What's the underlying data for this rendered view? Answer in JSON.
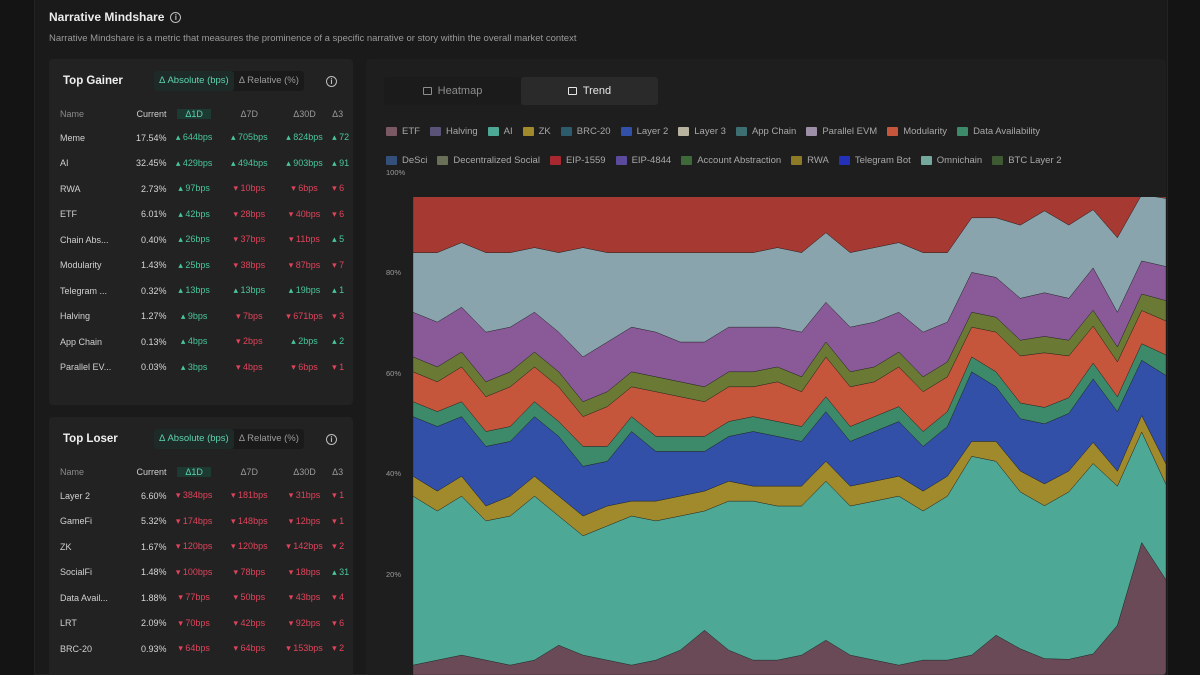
{
  "header": {
    "title": "Narrative Mindshare",
    "description": "Narrative Mindshare is a metric that measures the prominence of a specific narrative or story within the overall market context"
  },
  "modes": {
    "absolute": "Δ Absolute (bps)",
    "relative": "Δ Relative (%)"
  },
  "columns": {
    "name": "Name",
    "current": "Current",
    "d1": "Δ1D",
    "d7": "Δ7D",
    "d30": "Δ30D",
    "d3m": "Δ3"
  },
  "gainer": {
    "title": "Top Gainer",
    "rows": [
      {
        "name": "Meme",
        "current": "17.54%",
        "d1": "644bps",
        "d7": "705bps",
        "d30": "824bps",
        "d3m": "72",
        "t7": "up",
        "t30": "up",
        "t3": "up"
      },
      {
        "name": "AI",
        "current": "32.45%",
        "d1": "429bps",
        "d7": "494bps",
        "d30": "903bps",
        "d3m": "91",
        "t7": "up",
        "t30": "up",
        "t3": "up"
      },
      {
        "name": "RWA",
        "current": "2.73%",
        "d1": "97bps",
        "d7": "10bps",
        "d30": "6bps",
        "d3m": "6",
        "t7": "down",
        "t30": "down",
        "t3": "down"
      },
      {
        "name": "ETF",
        "current": "6.01%",
        "d1": "42bps",
        "d7": "28bps",
        "d30": "40bps",
        "d3m": "6",
        "t7": "down",
        "t30": "down",
        "t3": "down"
      },
      {
        "name": "Chain Abs...",
        "current": "0.40%",
        "d1": "26bps",
        "d7": "37bps",
        "d30": "11bps",
        "d3m": "5",
        "t7": "down",
        "t30": "down",
        "t3": "up"
      },
      {
        "name": "Modularity",
        "current": "1.43%",
        "d1": "25bps",
        "d7": "38bps",
        "d30": "87bps",
        "d3m": "7",
        "t7": "down",
        "t30": "down",
        "t3": "down"
      },
      {
        "name": "Telegram ...",
        "current": "0.32%",
        "d1": "13bps",
        "d7": "13bps",
        "d30": "19bps",
        "d3m": "1",
        "t7": "up",
        "t30": "up",
        "t3": "up"
      },
      {
        "name": "Halving",
        "current": "1.27%",
        "d1": "9bps",
        "d7": "7bps",
        "d30": "671bps",
        "d3m": "3",
        "t7": "down",
        "t30": "down",
        "t3": "down"
      },
      {
        "name": "App Chain",
        "current": "0.13%",
        "d1": "4bps",
        "d7": "2bps",
        "d30": "2bps",
        "d3m": "2",
        "t7": "down",
        "t30": "up",
        "t3": "up"
      },
      {
        "name": "Parallel EV...",
        "current": "0.03%",
        "d1": "3bps",
        "d7": "4bps",
        "d30": "6bps",
        "d3m": "1",
        "t7": "down",
        "t30": "down",
        "t3": "down"
      }
    ]
  },
  "loser": {
    "title": "Top Loser",
    "rows": [
      {
        "name": "Layer 2",
        "current": "6.60%",
        "d1": "384bps",
        "d7": "181bps",
        "d30": "31bps",
        "d3m": "1",
        "t7": "down",
        "t30": "down",
        "t3": "down"
      },
      {
        "name": "GameFi",
        "current": "5.32%",
        "d1": "174bps",
        "d7": "148bps",
        "d30": "12bps",
        "d3m": "1",
        "t7": "down",
        "t30": "down",
        "t3": "down"
      },
      {
        "name": "ZK",
        "current": "1.67%",
        "d1": "120bps",
        "d7": "120bps",
        "d30": "142bps",
        "d3m": "2",
        "t7": "down",
        "t30": "down",
        "t3": "down"
      },
      {
        "name": "SocialFi",
        "current": "1.48%",
        "d1": "100bps",
        "d7": "78bps",
        "d30": "18bps",
        "d3m": "31",
        "t7": "down",
        "t30": "down",
        "t3": "up"
      },
      {
        "name": "Data Avail...",
        "current": "1.88%",
        "d1": "77bps",
        "d7": "50bps",
        "d30": "43bps",
        "d3m": "4",
        "t7": "down",
        "t30": "down",
        "t3": "down"
      },
      {
        "name": "LRT",
        "current": "2.09%",
        "d1": "70bps",
        "d7": "42bps",
        "d30": "92bps",
        "d3m": "6",
        "t7": "down",
        "t30": "down",
        "t3": "down"
      },
      {
        "name": "BRC-20",
        "current": "0.93%",
        "d1": "64bps",
        "d7": "64bps",
        "d30": "153bps",
        "d3m": "2",
        "t7": "down",
        "t30": "down",
        "t3": "down"
      }
    ]
  },
  "chart_tabs": {
    "heatmap": "Heatmap",
    "trend": "Trend"
  },
  "chart_data": {
    "type": "area",
    "stacked": true,
    "percent": true,
    "y_ticks": [
      "20%",
      "40%",
      "60%",
      "80%",
      "100%"
    ],
    "ylim": [
      0,
      100
    ],
    "legend": [
      [
        {
          "name": "ETF",
          "color": "#7a5864"
        },
        {
          "name": "Halving",
          "color": "#5a5277"
        },
        {
          "name": "AI",
          "color": "#4ea896"
        },
        {
          "name": "ZK",
          "color": "#a08a2c"
        },
        {
          "name": "BRC-20",
          "color": "#2c5b6c"
        },
        {
          "name": "Layer 2",
          "color": "#3350a8"
        },
        {
          "name": "Layer 3",
          "color": "#b8b39e"
        },
        {
          "name": "App Chain",
          "color": "#3c6e72"
        },
        {
          "name": "Parallel EVM",
          "color": "#9c8fa7"
        },
        {
          "name": "Modularity",
          "color": "#c5563c"
        },
        {
          "name": "Data Availability",
          "color": "#3c8a6a"
        }
      ],
      [
        {
          "name": "DeSci",
          "color": "#34507a"
        },
        {
          "name": "Decentralized Social",
          "color": "#6a7058"
        },
        {
          "name": "EIP-1559",
          "color": "#a82830"
        },
        {
          "name": "EIP-4844",
          "color": "#5c4a9c"
        },
        {
          "name": "Account Abstraction",
          "color": "#3e6a3a"
        },
        {
          "name": "RWA",
          "color": "#8c7a26"
        },
        {
          "name": "Telegram Bot",
          "color": "#2430b8"
        },
        {
          "name": "Omnichain",
          "color": "#74a89c"
        },
        {
          "name": "BTC Layer 2",
          "color": "#3e5a32"
        }
      ]
    ],
    "layers": [
      {
        "name": "ETF",
        "color": "#6a4a56",
        "values": [
          2,
          3,
          4,
          3,
          2,
          3,
          6,
          4,
          3,
          2,
          3,
          5,
          9,
          5,
          3,
          3,
          4,
          7,
          4,
          3,
          2,
          3,
          3,
          4,
          8,
          5,
          3,
          3,
          4,
          10,
          24,
          14
        ]
      },
      {
        "name": "AI",
        "color": "#4ea896",
        "values": [
          34,
          30,
          32,
          28,
          30,
          33,
          26,
          24,
          27,
          30,
          28,
          27,
          24,
          30,
          32,
          31,
          30,
          32,
          30,
          32,
          34,
          30,
          33,
          40,
          35,
          30,
          28,
          32,
          36,
          28,
          20,
          14
        ]
      },
      {
        "name": "ZK",
        "color": "#a08a2c",
        "values": [
          4,
          4,
          4,
          3,
          4,
          4,
          4,
          4,
          4,
          3,
          4,
          4,
          4,
          4,
          3,
          4,
          4,
          4,
          4,
          4,
          4,
          4,
          4,
          3,
          4,
          4,
          4,
          4,
          4,
          3,
          3,
          3
        ]
      },
      {
        "name": "Layer 2",
        "color": "#3350a8",
        "values": [
          12,
          13,
          12,
          12,
          11,
          12,
          12,
          10,
          9,
          14,
          10,
          9,
          8,
          9,
          11,
          10,
          9,
          10,
          9,
          10,
          11,
          9,
          10,
          14,
          11,
          10,
          11,
          11,
          12,
          12,
          10,
          13
        ]
      },
      {
        "name": "Data Availability",
        "color": "#3c8a6a",
        "values": [
          3,
          3,
          3,
          3,
          3,
          3,
          3,
          4,
          3,
          3,
          3,
          3,
          3,
          3,
          3,
          3,
          3,
          3,
          3,
          3,
          3,
          3,
          3,
          3,
          3,
          3,
          3,
          3,
          3,
          3,
          3,
          3
        ]
      },
      {
        "name": "Modularity",
        "color": "#c5563c",
        "values": [
          6,
          6,
          7,
          7,
          8,
          7,
          7,
          6,
          8,
          6,
          9,
          8,
          7,
          7,
          6,
          8,
          7,
          8,
          8,
          7,
          8,
          8,
          7,
          6,
          8,
          9,
          10,
          8,
          7,
          7,
          6,
          5
        ]
      },
      {
        "name": "RWA",
        "color": "#6a7a34",
        "values": [
          3,
          3,
          3,
          3,
          3,
          3,
          3,
          3,
          3,
          3,
          3,
          3,
          3,
          3,
          3,
          3,
          3,
          3,
          3,
          3,
          3,
          3,
          3,
          3,
          3,
          3,
          3,
          3,
          3,
          3,
          3,
          3
        ]
      },
      {
        "name": "Parallel EVM",
        "color": "#8a5a98",
        "values": [
          9,
          9,
          9,
          10,
          9,
          8,
          8,
          9,
          10,
          9,
          9,
          8,
          9,
          9,
          9,
          8,
          9,
          8,
          9,
          9,
          8,
          9,
          8,
          8,
          8,
          8,
          8,
          8,
          8,
          7,
          6,
          5
        ]
      },
      {
        "name": "Omnichain",
        "color": "#8aa4ae",
        "values": [
          12,
          14,
          13,
          16,
          15,
          13,
          16,
          22,
          18,
          15,
          16,
          18,
          18,
          15,
          15,
          16,
          16,
          14,
          15,
          15,
          14,
          16,
          14,
          11,
          12,
          14,
          15,
          14,
          11,
          15,
          12,
          10
        ]
      },
      {
        "name": "EIP-1559",
        "color": "#a63a32",
        "values": [
          15,
          15,
          13,
          15,
          15,
          14,
          15,
          14,
          15,
          15,
          15,
          15,
          15,
          15,
          15,
          14,
          15,
          11,
          15,
          14,
          13,
          15,
          15,
          8,
          8,
          9,
          6,
          9,
          6,
          12,
          3,
          3
        ]
      }
    ]
  }
}
